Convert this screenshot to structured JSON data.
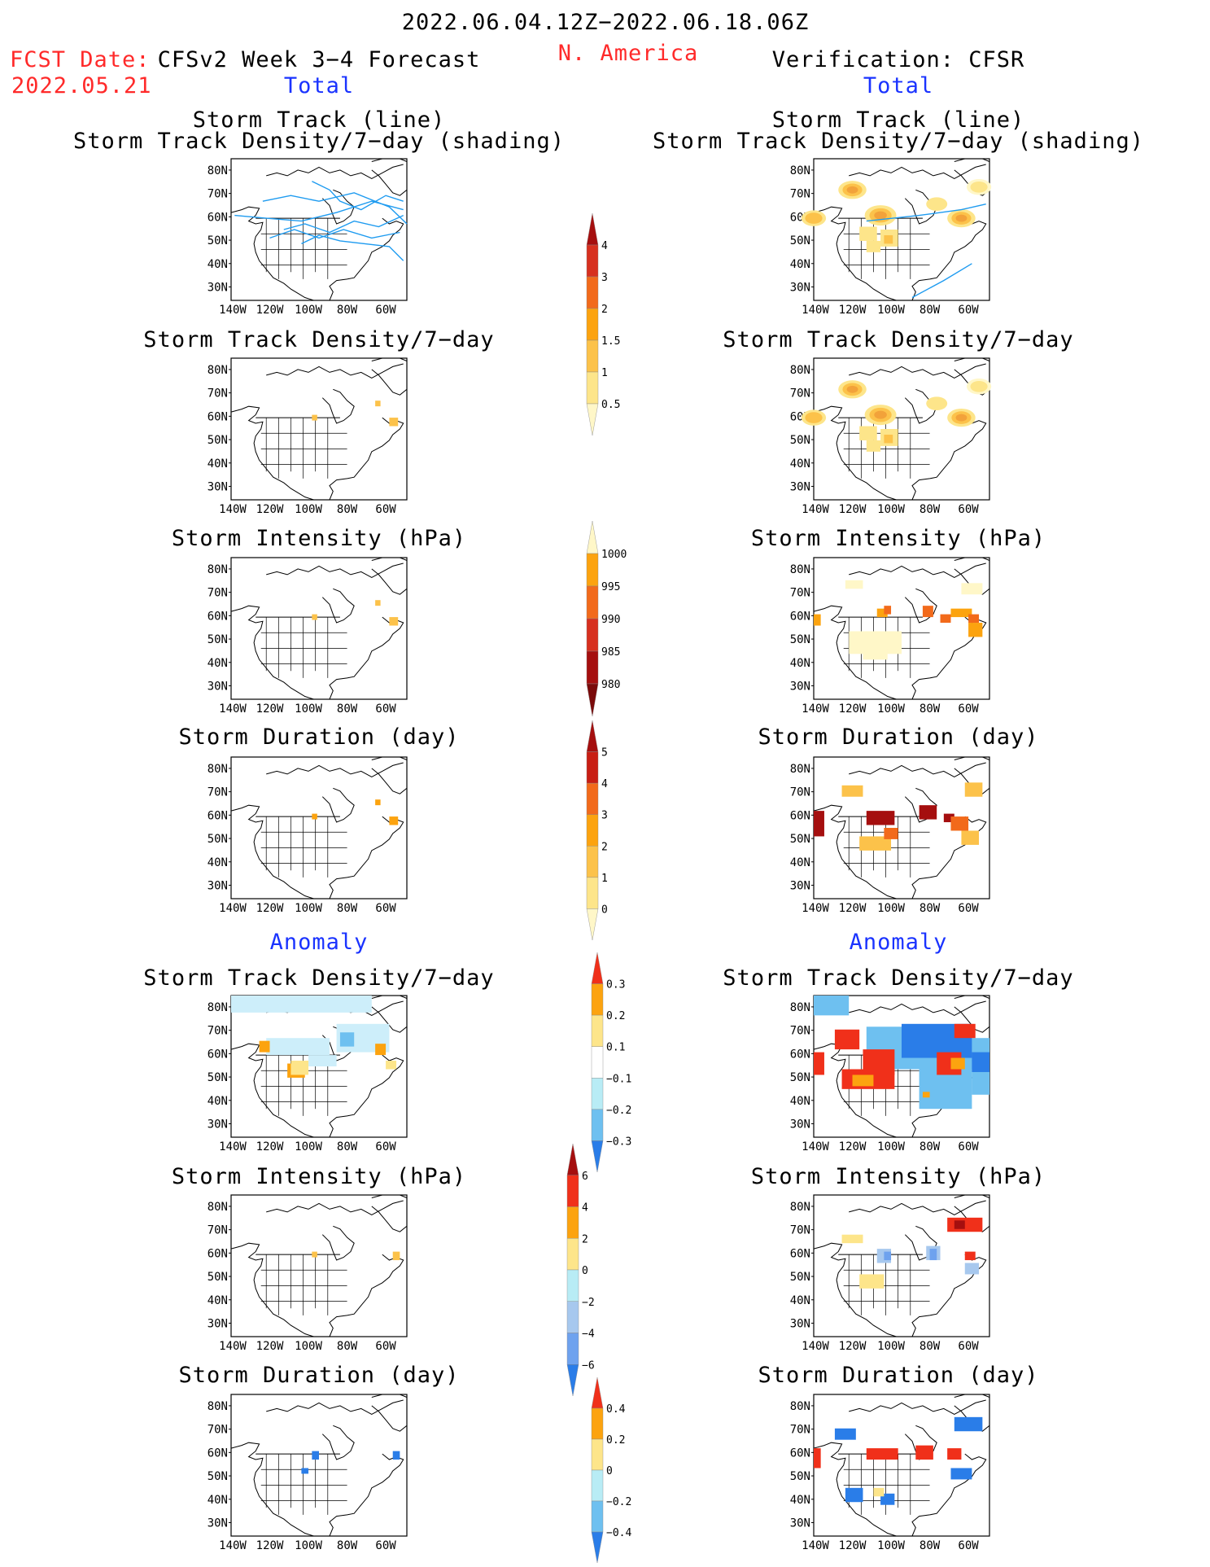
{
  "header": {
    "date_range": "2022.06.04.12Z−2022.06.18.06Z",
    "fcst_label": "FCST Date:",
    "fcst_date": "2022.05.21",
    "model_title": "CFSv2 Week 3−4 Forecast",
    "region": "N. America",
    "verification_title": "Verification: CFSR",
    "left_subtitle": "Total",
    "right_subtitle": "Total",
    "anomaly_left": "Anomaly",
    "anomaly_right": "Anomaly"
  },
  "titles": {
    "track_line": "Storm Track (line)",
    "track_shading": "Storm Track Density/7−day (shading)",
    "density": "Storm Track Density/7−day",
    "intensity": "Storm Intensity (hPa)",
    "duration": "Storm Duration (day)"
  },
  "axes": {
    "lat_labels": [
      "80N",
      "70N",
      "60N",
      "50N",
      "40N",
      "30N"
    ],
    "lon_labels": [
      "140W",
      "120W",
      "100W",
      "80W",
      "60W"
    ]
  },
  "colorbars": {
    "density_total": {
      "labels": [
        "4",
        "3",
        "2",
        "1.5",
        "1",
        "0.5"
      ],
      "colors": [
        "#a50f0f",
        "#d7301f",
        "#f26a1b",
        "#fca30f",
        "#fcc24a",
        "#fde58a",
        "#fff7c8"
      ]
    },
    "intensity_total": {
      "labels": [
        "1000",
        "995",
        "990",
        "985",
        "980"
      ],
      "colors": [
        "#fff7c8",
        "#fca30f",
        "#f26a1b",
        "#d7301f",
        "#a50f0f",
        "#7a0a0a"
      ]
    },
    "duration_total": {
      "labels": [
        "5",
        "4",
        "3",
        "2",
        "1",
        "0"
      ],
      "colors": [
        "#a50f0f",
        "#c81e14",
        "#f26a1b",
        "#fca30f",
        "#fcc24a",
        "#fde58a",
        "#fff7c8"
      ]
    },
    "density_anom": {
      "labels": [
        "0.3",
        "0.2",
        "0.1",
        "−0.1",
        "−0.2",
        "−0.3"
      ],
      "colors": [
        "#f0301a",
        "#fca30f",
        "#fde58a",
        "#ffffff",
        "#b8ecf5",
        "#6ec0f0",
        "#2a7de8"
      ]
    },
    "intensity_anom": {
      "labels": [
        "6",
        "4",
        "2",
        "0",
        "−2",
        "−4",
        "−6"
      ],
      "colors": [
        "#a50f0f",
        "#f0301a",
        "#fca30f",
        "#fde58a",
        "#b8ecf5",
        "#a7c8ee",
        "#6ea2ee",
        "#2a7de8"
      ]
    },
    "duration_anom": {
      "labels": [
        "0.4",
        "0.2",
        "0",
        "−0.2",
        "−0.4"
      ],
      "colors": [
        "#f0301a",
        "#fca30f",
        "#fde58a",
        "#b8ecf5",
        "#6ec0f0",
        "#2a7de8"
      ]
    }
  },
  "legend_colors": {
    "track_line": "#1e9bf0",
    "map_line": "#000000"
  }
}
